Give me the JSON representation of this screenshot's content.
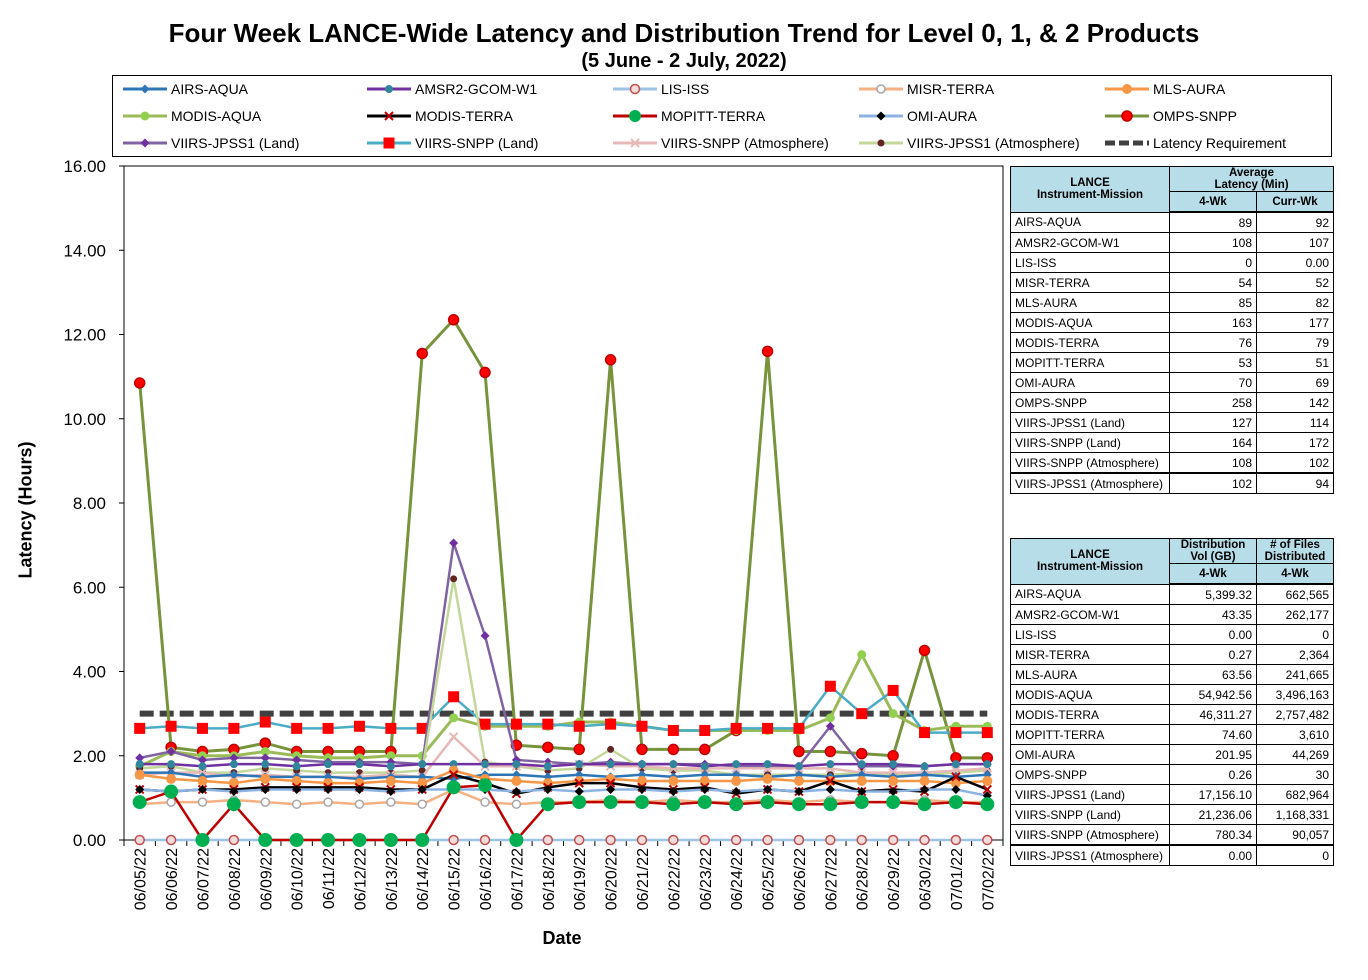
{
  "page": {
    "title": "Four Week LANCE-Wide Latency and Distribution Trend for Level 0, 1, & 2 Products",
    "subtitle": "(5 June   - 2 July, 2022)"
  },
  "legend": [
    {
      "label": "AIRS-AQUA",
      "color": "#2e75b6",
      "marker": "diamond"
    },
    {
      "label": "AMSR2-GCOM-W1",
      "color": "#7030a0",
      "marker": "circle-teal"
    },
    {
      "label": "LIS-ISS",
      "color": "#9dc3e6",
      "marker": "circle-pink"
    },
    {
      "label": "MISR-TERRA",
      "color": "#f4b183",
      "marker": "circle-white"
    },
    {
      "label": "MLS-AURA",
      "color": "#f79646",
      "marker": "circle-orange"
    },
    {
      "label": "MODIS-AQUA",
      "color": "#9bbb59",
      "marker": "circle-green"
    },
    {
      "label": "MODIS-TERRA",
      "color": "#000000",
      "marker": "x-red"
    },
    {
      "label": "MOPITT-TERRA",
      "color": "#c00000",
      "marker": "circle-green-big"
    },
    {
      "label": "OMI-AURA",
      "color": "#8db3e2",
      "marker": "diamond-black"
    },
    {
      "label": "OMPS-SNPP",
      "color": "#77933c",
      "marker": "circle-red"
    },
    {
      "label": "VIIRS-JPSS1 (Land)",
      "color": "#8064a2",
      "marker": "diamond-purple"
    },
    {
      "label": "VIIRS-SNPP (Land)",
      "color": "#4bacc6",
      "marker": "square-red"
    },
    {
      "label": "VIIRS-SNPP (Atmosphere)",
      "color": "#e6b9b8",
      "marker": "x-pink"
    },
    {
      "label": "VIIRS-JPSS1 (Atmosphere)",
      "color": "#c4d79b",
      "marker": "circle-darkred"
    },
    {
      "label": "Latency Requirement",
      "color": "#404040",
      "marker": "dash"
    }
  ],
  "chart_data": {
    "type": "line",
    "ylabel": "Latency (Hours)",
    "xlabel": "Date",
    "ylim": [
      0,
      16
    ],
    "yticks": [
      "0.00",
      "2.00",
      "4.00",
      "6.00",
      "8.00",
      "10.00",
      "12.00",
      "14.00",
      "16.00"
    ],
    "categories": [
      "06/05/22",
      "06/06/22",
      "06/07/22",
      "06/08/22",
      "06/09/22",
      "06/10/22",
      "06/11/22",
      "06/12/22",
      "06/13/22",
      "06/14/22",
      "06/15/22",
      "06/16/22",
      "06/17/22",
      "06/18/22",
      "06/19/22",
      "06/20/22",
      "06/21/22",
      "06/22/22",
      "06/23/22",
      "06/24/22",
      "06/25/22",
      "06/26/22",
      "06/27/22",
      "06/28/22",
      "06/29/22",
      "06/30/22",
      "07/01/22",
      "07/02/22"
    ],
    "series": [
      {
        "name": "Latency Requirement",
        "values": [
          3,
          3,
          3,
          3,
          3,
          3,
          3,
          3,
          3,
          3,
          3,
          3,
          3,
          3,
          3,
          3,
          3,
          3,
          3,
          3,
          3,
          3,
          3,
          3,
          3,
          3,
          3,
          3
        ]
      },
      {
        "name": "OMPS-SNPP",
        "values": [
          10.85,
          2.2,
          2.1,
          2.15,
          2.3,
          2.1,
          2.1,
          2.1,
          2.1,
          11.55,
          12.35,
          11.1,
          2.25,
          2.2,
          2.15,
          11.4,
          2.15,
          2.15,
          2.15,
          2.6,
          11.6,
          2.1,
          2.1,
          2.05,
          2.0,
          4.5,
          1.95,
          1.95
        ]
      },
      {
        "name": "MODIS-AQUA",
        "values": [
          1.75,
          2.1,
          2.0,
          2.0,
          2.1,
          2.0,
          1.95,
          1.95,
          2.0,
          2.0,
          2.9,
          2.7,
          2.7,
          2.7,
          2.8,
          2.8,
          2.7,
          2.6,
          2.6,
          2.6,
          2.6,
          2.6,
          2.9,
          4.4,
          3.0,
          2.6,
          2.7,
          2.7
        ]
      },
      {
        "name": "VIIRS-SNPP (Land)",
        "values": [
          2.65,
          2.7,
          2.65,
          2.65,
          2.8,
          2.65,
          2.65,
          2.7,
          2.65,
          2.65,
          3.4,
          2.75,
          2.75,
          2.75,
          2.7,
          2.75,
          2.7,
          2.6,
          2.6,
          2.65,
          2.65,
          2.65,
          3.65,
          3.0,
          3.55,
          2.55,
          2.55,
          2.55
        ]
      },
      {
        "name": "VIIRS-JPSS1 (Land)",
        "values": [
          1.95,
          2.1,
          1.9,
          1.95,
          1.95,
          1.9,
          1.85,
          1.85,
          1.85,
          1.8,
          7.05,
          4.85,
          1.9,
          1.85,
          1.8,
          1.85,
          1.8,
          1.8,
          1.8,
          1.75,
          1.75,
          1.75,
          2.7,
          1.75,
          1.75,
          1.75,
          1.8,
          1.8
        ]
      },
      {
        "name": "VIIRS-JPSS1 (Atmosphere)",
        "values": [
          1.7,
          1.75,
          1.6,
          1.6,
          1.7,
          1.65,
          1.6,
          1.6,
          1.6,
          1.65,
          6.2,
          1.85,
          1.75,
          1.65,
          1.7,
          2.15,
          1.7,
          1.65,
          1.65,
          1.55,
          1.55,
          1.55,
          1.55,
          1.6,
          1.55,
          1.55,
          1.6,
          1.65
        ]
      },
      {
        "name": "VIIRS-SNPP (Atmosphere)",
        "values": [
          1.55,
          1.6,
          1.6,
          1.5,
          1.55,
          1.5,
          1.5,
          1.5,
          1.55,
          1.5,
          2.45,
          1.75,
          1.75,
          1.75,
          1.8,
          1.75,
          1.75,
          1.7,
          1.7,
          1.7,
          1.7,
          1.7,
          1.7,
          1.6,
          1.6,
          1.6,
          1.65,
          1.7
        ]
      },
      {
        "name": "AIRS-AQUA",
        "values": [
          1.6,
          1.6,
          1.5,
          1.55,
          1.5,
          1.5,
          1.5,
          1.45,
          1.5,
          1.5,
          1.45,
          1.55,
          1.55,
          1.5,
          1.55,
          1.5,
          1.55,
          1.5,
          1.55,
          1.55,
          1.5,
          1.55,
          1.5,
          1.55,
          1.5,
          1.55,
          1.5,
          1.55
        ]
      },
      {
        "name": "AMSR2-GCOM-W1",
        "values": [
          1.8,
          1.8,
          1.75,
          1.8,
          1.8,
          1.75,
          1.8,
          1.8,
          1.75,
          1.8,
          1.8,
          1.8,
          1.8,
          1.75,
          1.8,
          1.8,
          1.8,
          1.8,
          1.75,
          1.8,
          1.8,
          1.75,
          1.8,
          1.8,
          1.8,
          1.75,
          1.8,
          1.8
        ]
      },
      {
        "name": "MLS-AURA",
        "values": [
          1.55,
          1.45,
          1.4,
          1.35,
          1.45,
          1.4,
          1.35,
          1.35,
          1.4,
          1.35,
          1.65,
          1.45,
          1.4,
          1.35,
          1.4,
          1.45,
          1.4,
          1.4,
          1.4,
          1.4,
          1.45,
          1.4,
          1.4,
          1.4,
          1.4,
          1.4,
          1.35,
          1.4
        ]
      },
      {
        "name": "MISR-TERRA",
        "values": [
          0.85,
          0.9,
          0.9,
          0.95,
          0.9,
          0.85,
          0.9,
          0.85,
          0.9,
          0.85,
          1.2,
          0.9,
          0.85,
          0.9,
          0.9,
          0.95,
          0.9,
          0.95,
          0.9,
          0.9,
          0.95,
          0.9,
          0.95,
          0.9,
          0.9,
          0.95,
          0.9,
          0.9
        ]
      },
      {
        "name": "MODIS-TERRA",
        "values": [
          1.2,
          1.15,
          1.2,
          1.2,
          1.25,
          1.25,
          1.25,
          1.25,
          1.2,
          1.2,
          1.55,
          1.35,
          1.1,
          1.25,
          1.35,
          1.35,
          1.25,
          1.2,
          1.25,
          1.1,
          1.2,
          1.15,
          1.4,
          1.15,
          1.2,
          1.15,
          1.5,
          1.2
        ]
      },
      {
        "name": "OMI-AURA",
        "values": [
          1.2,
          1.15,
          1.2,
          1.15,
          1.2,
          1.2,
          1.2,
          1.2,
          1.15,
          1.2,
          1.2,
          1.2,
          1.15,
          1.2,
          1.15,
          1.2,
          1.2,
          1.15,
          1.2,
          1.15,
          1.2,
          1.15,
          1.2,
          1.15,
          1.15,
          1.2,
          1.2,
          1.05
        ]
      },
      {
        "name": "LIS-ISS",
        "values": [
          0,
          0,
          0,
          0,
          0,
          0,
          0,
          0,
          0,
          0,
          0,
          0,
          0,
          0,
          0,
          0,
          0,
          0,
          0,
          0,
          0,
          0,
          0,
          0,
          0,
          0,
          0,
          0
        ]
      },
      {
        "name": "MOPITT-TERRA",
        "values": [
          0.9,
          1.15,
          0,
          0.85,
          0,
          0,
          0,
          0,
          0,
          0,
          1.25,
          1.3,
          0,
          0.85,
          0.9,
          0.9,
          0.9,
          0.85,
          0.9,
          0.85,
          0.9,
          0.85,
          0.85,
          0.9,
          0.9,
          0.85,
          0.9,
          0.85
        ]
      }
    ]
  },
  "latency_table": {
    "header_col1": [
      "LANCE",
      "Instrument-Mission"
    ],
    "header_col2": [
      "Average",
      "Latency (Min)"
    ],
    "sub_4wk": "4-Wk",
    "sub_curr": "Curr-Wk",
    "rows": [
      {
        "name": "AIRS-AQUA",
        "wk4": "89",
        "curr": "92"
      },
      {
        "name": "AMSR2-GCOM-W1",
        "wk4": "108",
        "curr": "107"
      },
      {
        "name": "LIS-ISS",
        "wk4": "0",
        "curr": "0.00"
      },
      {
        "name": "MISR-TERRA",
        "wk4": "54",
        "curr": "52"
      },
      {
        "name": "MLS-AURA",
        "wk4": "85",
        "curr": "82"
      },
      {
        "name": "MODIS-AQUA",
        "wk4": "163",
        "curr": "177"
      },
      {
        "name": "MODIS-TERRA",
        "wk4": "76",
        "curr": "79"
      },
      {
        "name": "MOPITT-TERRA",
        "wk4": "53",
        "curr": "51"
      },
      {
        "name": "OMI-AURA",
        "wk4": "70",
        "curr": "69"
      },
      {
        "name": "OMPS-SNPP",
        "wk4": "258",
        "curr": "142"
      },
      {
        "name": "VIIRS-JPSS1 (Land)",
        "wk4": "127",
        "curr": "114"
      },
      {
        "name": "VIIRS-SNPP (Land)",
        "wk4": "164",
        "curr": "172"
      },
      {
        "name": "VIIRS-SNPP (Atmosphere)",
        "wk4": "108",
        "curr": "102"
      },
      {
        "name": "VIIRS-JPSS1 (Atmosphere)",
        "wk4": "102",
        "curr": "94"
      }
    ]
  },
  "distribution_table": {
    "header_col1": [
      "LANCE",
      "Instrument-Mission"
    ],
    "header_col2": [
      "Distribution",
      "Vol (GB)"
    ],
    "header_col3": [
      "# of Files",
      "Distributed"
    ],
    "sub_4wk": "4-Wk",
    "rows": [
      {
        "name": "AIRS-AQUA",
        "vol": "5,399.32",
        "files": "662,565"
      },
      {
        "name": "AMSR2-GCOM-W1",
        "vol": "43.35",
        "files": "262,177"
      },
      {
        "name": "LIS-ISS",
        "vol": "0.00",
        "files": "0"
      },
      {
        "name": "MISR-TERRA",
        "vol": "0.27",
        "files": "2,364"
      },
      {
        "name": "MLS-AURA",
        "vol": "63.56",
        "files": "241,665"
      },
      {
        "name": "MODIS-AQUA",
        "vol": "54,942.56",
        "files": "3,496,163"
      },
      {
        "name": "MODIS-TERRA",
        "vol": "46,311.27",
        "files": "2,757,482"
      },
      {
        "name": "MOPITT-TERRA",
        "vol": "74.60",
        "files": "3,610"
      },
      {
        "name": "OMI-AURA",
        "vol": "201.95",
        "files": "44,269"
      },
      {
        "name": "OMPS-SNPP",
        "vol": "0.26",
        "files": "30"
      },
      {
        "name": "VIIRS-JPSS1 (Land)",
        "vol": "17,156.10",
        "files": "682,964"
      },
      {
        "name": "VIIRS-SNPP (Land)",
        "vol": "21,236.06",
        "files": "1,168,331"
      },
      {
        "name": "VIIRS-SNPP (Atmosphere)",
        "vol": "780.34",
        "files": "90,057"
      },
      {
        "name": "VIIRS-JPSS1 (Atmosphere)",
        "vol": "0.00",
        "files": "0"
      }
    ]
  }
}
